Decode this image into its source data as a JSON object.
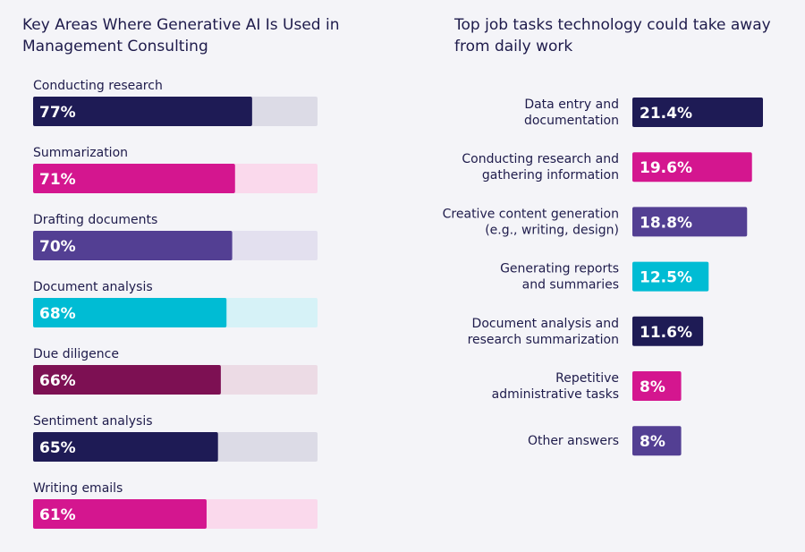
{
  "chart_data": [
    {
      "type": "bar",
      "orientation": "horizontal",
      "title": "Key Areas Where Generative AI Is Used in Management Consulting",
      "title_lines": [
        "Key Areas Where Generative AI Is Used in",
        "Management Consulting"
      ],
      "categories": [
        "Conducting research",
        "Summarization",
        "Drafting documents",
        "Document analysis",
        "Due diligence",
        "Sentiment analysis",
        "Writing emails"
      ],
      "values": [
        77,
        71,
        70,
        68,
        66,
        65,
        61
      ],
      "value_labels": [
        "77%",
        "71%",
        "70%",
        "68%",
        "66%",
        "65%",
        "61%"
      ],
      "xlim": [
        0,
        100
      ],
      "colors": [
        "#1e1b55",
        "#d4168f",
        "#533f93",
        "#00bcd4",
        "#7d1053",
        "#1e1b55",
        "#d4168f"
      ],
      "track_colors": [
        "#dcdbe6",
        "#fad9ec",
        "#e3e0ef",
        "#d6f2f7",
        "#ecdbe5",
        "#dcdbe6",
        "#fad9ec"
      ],
      "grid": false
    },
    {
      "type": "bar",
      "orientation": "horizontal",
      "title": "Top job tasks technology could take away from daily work",
      "title_lines": [
        "Top job tasks technology could take away",
        "from daily work"
      ],
      "categories": [
        "Data entry and documentation",
        "Conducting research and gathering information",
        "Creative content generation (e.g., writing, design)",
        "Generating reports and summaries",
        "Document analysis and research summarization",
        "Repetitive administrative tasks",
        "Other answers"
      ],
      "category_lines": [
        [
          "Data entry and",
          "documentation"
        ],
        [
          "Conducting research and",
          "gathering information"
        ],
        [
          "Creative content generation",
          "(e.g., writing, design)"
        ],
        [
          "Generating reports",
          "and summaries"
        ],
        [
          "Document analysis and",
          "research summarization"
        ],
        [
          "Repetitive",
          "administrative tasks"
        ],
        [
          "Other answers"
        ]
      ],
      "values": [
        21.4,
        19.6,
        18.8,
        12.5,
        11.6,
        8,
        8
      ],
      "value_labels": [
        "21.4%",
        "19.6%",
        "18.8%",
        "12.5%",
        "11.6%",
        "8%",
        "8%"
      ],
      "colors": [
        "#1e1b55",
        "#d4168f",
        "#533f93",
        "#00bcd4",
        "#1e1b55",
        "#d4168f",
        "#533f93"
      ],
      "grid": false
    }
  ]
}
